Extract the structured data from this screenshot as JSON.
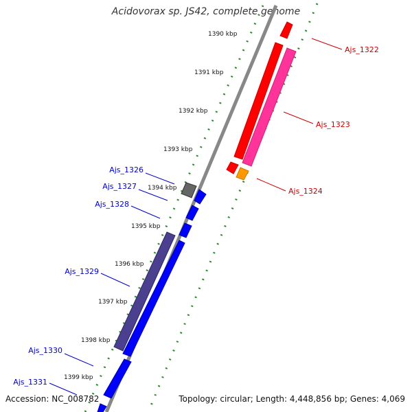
{
  "title": "Acidovorax sp. JS42, complete genome",
  "footer": {
    "accession": "Accession: NC_008782",
    "summary": "Topology: circular; Length: 4,448,856 bp; Genes: 4,069"
  },
  "colors": {
    "forward_cds": "#ff0000",
    "forward_cds_2": "#ff3399",
    "forward_rna": "#ff9900",
    "reverse_cds": "#0000ff",
    "reverse_cds_2": "#4b3f8f",
    "reverse_pseudo": "#666666",
    "label_forward": "#cc0000",
    "label_reverse": "#0000cc",
    "backbone": "#777777",
    "tick": "#2a8a2a"
  },
  "ticks": [
    "1390 kbp",
    "1391 kbp",
    "1392 kbp",
    "1393 kbp",
    "1394 kbp",
    "1395 kbp",
    "1396 kbp",
    "1397 kbp",
    "1398 kbp",
    "1399 kbp"
  ],
  "genes_forward": [
    "Ajs_1322",
    "Ajs_1323",
    "Ajs_1324"
  ],
  "genes_reverse": [
    "Ajs_1326",
    "Ajs_1327",
    "Ajs_1328",
    "Ajs_1329",
    "Ajs_1330",
    "Ajs_1331"
  ]
}
